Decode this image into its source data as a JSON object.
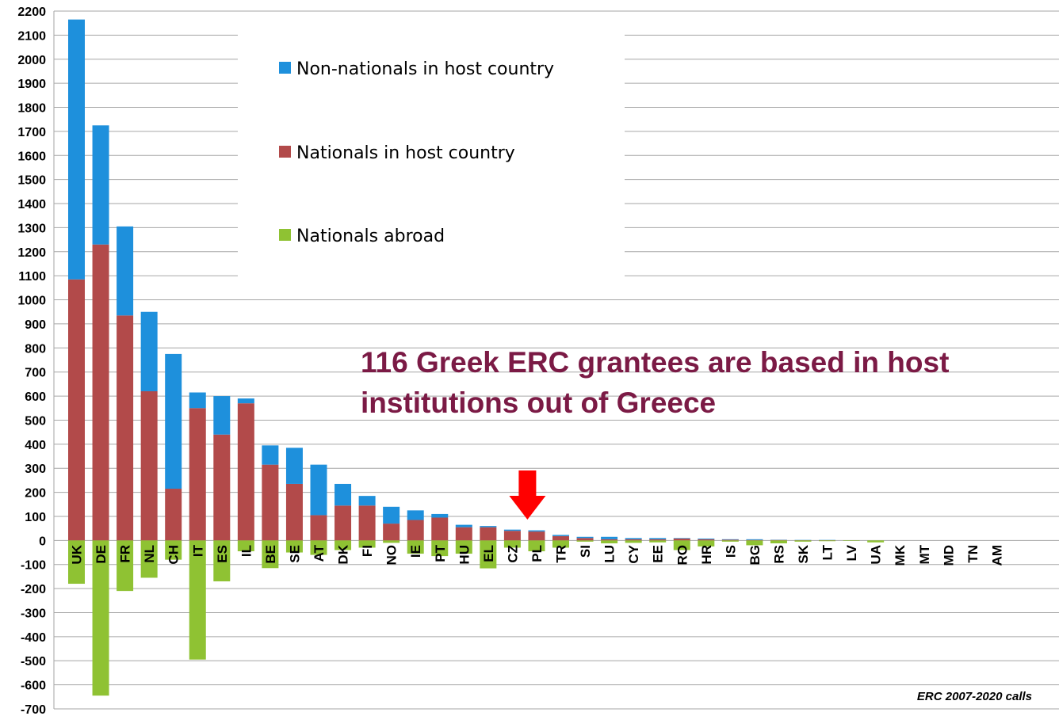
{
  "chart_data": {
    "type": "bar",
    "stacked": true,
    "ylim": [
      -700,
      2200
    ],
    "y_ticks": [
      2200,
      2100,
      2000,
      1900,
      1800,
      1700,
      1600,
      1500,
      1400,
      1300,
      1200,
      1100,
      1000,
      900,
      800,
      700,
      600,
      500,
      400,
      300,
      200,
      100,
      0,
      -100,
      -200,
      -300,
      -400,
      -500,
      -600,
      -700
    ],
    "grid": true,
    "legend_position": "top-center",
    "categories": [
      "UK",
      "DE",
      "FR",
      "NL",
      "CH",
      "IT",
      "ES",
      "IL",
      "BE",
      "SE",
      "AT",
      "DK",
      "FI",
      "NO",
      "IE",
      "PT",
      "HU",
      "EL",
      "CZ",
      "PL",
      "TR",
      "SI",
      "LU",
      "CY",
      "EE",
      "RO",
      "HR",
      "IS",
      "BG",
      "RS",
      "SK",
      "LT",
      "LV",
      "UA",
      "MK",
      "MT",
      "MD",
      "TN",
      "AM"
    ],
    "series": [
      {
        "name": "Non-nationals in host country",
        "color": "#1e90dc",
        "values": [
          1080,
          495,
          370,
          330,
          560,
          65,
          160,
          20,
          80,
          150,
          210,
          90,
          40,
          70,
          40,
          15,
          10,
          5,
          5,
          5,
          5,
          5,
          10,
          5,
          5,
          2,
          3,
          2,
          3,
          1,
          1,
          1,
          0,
          0,
          0,
          0,
          0,
          0,
          0
        ]
      },
      {
        "name": "Nationals in host country",
        "color": "#b24a4a",
        "values": [
          1085,
          1230,
          935,
          620,
          215,
          550,
          440,
          570,
          315,
          235,
          105,
          145,
          145,
          70,
          85,
          95,
          55,
          55,
          40,
          37,
          18,
          10,
          5,
          5,
          5,
          8,
          5,
          3,
          2,
          2,
          1,
          1,
          0,
          0,
          0,
          0,
          0,
          0,
          0
        ]
      },
      {
        "name": "Nationals abroad",
        "color": "#8fc233",
        "values": [
          -180,
          -645,
          -210,
          -155,
          -80,
          -495,
          -170,
          -45,
          -115,
          -50,
          -60,
          -40,
          -30,
          -10,
          -55,
          -65,
          -55,
          -116,
          -30,
          -45,
          -30,
          -5,
          -12,
          -10,
          -8,
          -40,
          -25,
          -5,
          -20,
          -12,
          -5,
          -3,
          -2,
          -8,
          0,
          0,
          0,
          0,
          0
        ]
      }
    ],
    "annotation": {
      "line1": "116 Greek ERC grantees are based in host",
      "line2": "institutions  out of Greece",
      "color": "#7b1a45",
      "arrow_color": "#ff0000",
      "arrow_category": "CZ"
    },
    "source_note": "ERC 2007-2020 calls"
  }
}
